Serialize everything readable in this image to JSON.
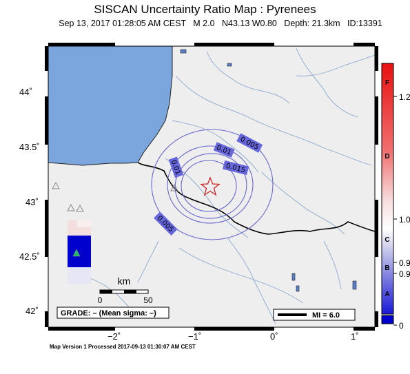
{
  "header": {
    "title": "SISCAN Uncertainty Ratio Map : Pyrenees",
    "subtitle": "Sep 13, 2017 01:28:05 AM CEST   M 2.0   N43.13 W0.80   Depth: 21.3km   ID:13391"
  },
  "axes": {
    "lat_ticks": [
      "44˚",
      "43.5˚",
      "43˚",
      "42.5˚",
      "42˚"
    ],
    "lon_ticks": [
      "−2˚",
      "−1˚",
      "0˚",
      "1˚"
    ]
  },
  "contours": [
    "0.005",
    "0.01",
    "0.015",
    "0.01",
    "0.005"
  ],
  "epicenter": {
    "lat": 43.13,
    "lon": -0.8,
    "icon": "star-icon",
    "color": "#cc2222"
  },
  "scale": {
    "unit": "km",
    "start": "0",
    "end": "50"
  },
  "grade_box": "GRADE: – (Mean sigma: –)",
  "mi_box": "MI = 6.0",
  "colorbar": {
    "right_labels": [
      "1.2",
      "1.0",
      "0.9",
      "0.9",
      "0"
    ],
    "grades": [
      "F",
      "D",
      "C",
      "B",
      "A"
    ],
    "top_color": "#dd1111",
    "bottom_color": "#0000cc"
  },
  "footer": "Map Version 1 Processed 2017-09-13 01:30:07 AM CEST",
  "colors": {
    "sea": "#7aa6dd",
    "land": "#eeeeee",
    "contour": "#6666cc",
    "rivers": "#8aa8cc"
  }
}
